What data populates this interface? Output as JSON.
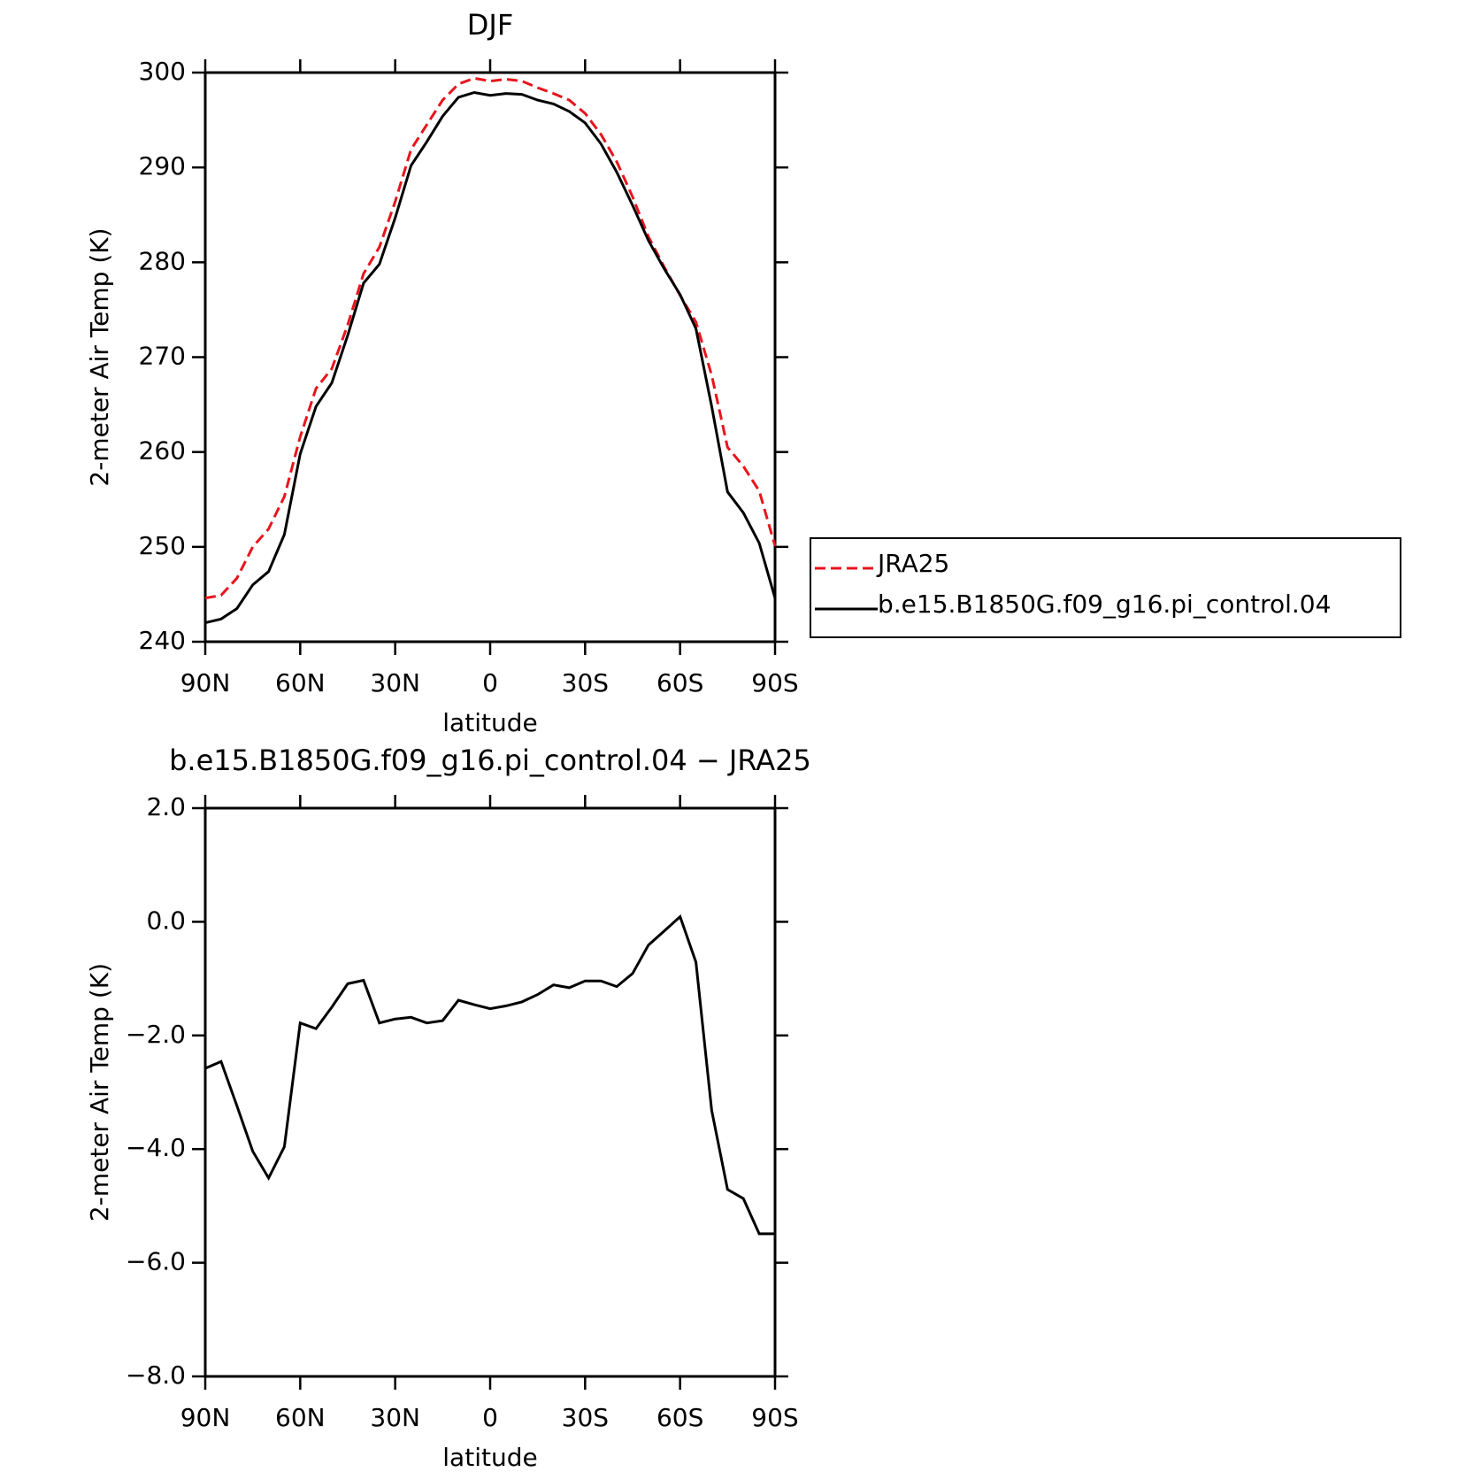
{
  "chart_data": [
    {
      "type": "line",
      "title": "DJF",
      "xlabel": "latitude",
      "ylabel": "2-meter Air Temp (K)",
      "x": [
        90,
        85,
        80,
        75,
        70,
        65,
        60,
        55,
        50,
        45,
        40,
        35,
        30,
        25,
        20,
        15,
        10,
        5,
        0,
        -5,
        -10,
        -15,
        -20,
        -25,
        -30,
        -35,
        -40,
        -45,
        -50,
        -55,
        -60,
        -65,
        -70,
        -75,
        -80,
        -85,
        -90
      ],
      "series": [
        {
          "name": "JRA25",
          "color": "#e8141c",
          "dash": true,
          "values": [
            244.6,
            244.9,
            246.7,
            250.0,
            251.9,
            255.3,
            261.6,
            266.7,
            268.8,
            273.4,
            278.8,
            281.6,
            286.4,
            291.9,
            294.5,
            297.1,
            298.8,
            299.4,
            299.1,
            299.3,
            299.1,
            298.4,
            297.8,
            297.1,
            295.7,
            293.5,
            290.6,
            286.9,
            282.7,
            279.5,
            276.5,
            273.7,
            268.1,
            260.5,
            258.5,
            255.9,
            250.1
          ]
        },
        {
          "name": "b.e15.B1850G.f09_g16.pi_control.04",
          "color": "#000000",
          "dash": false,
          "values": [
            242.0,
            242.4,
            243.5,
            246.0,
            247.4,
            251.3,
            259.8,
            264.8,
            267.3,
            272.3,
            277.8,
            279.8,
            284.7,
            290.2,
            292.7,
            295.4,
            297.4,
            297.9,
            297.6,
            297.8,
            297.7,
            297.1,
            296.7,
            295.9,
            294.7,
            292.5,
            289.5,
            286.0,
            282.3,
            279.3,
            276.6,
            273.0,
            264.8,
            255.8,
            253.6,
            250.4,
            244.6
          ]
        }
      ],
      "xlim": [
        90,
        -90
      ],
      "xticks": [
        {
          "value": 90,
          "label": "90N"
        },
        {
          "value": 60,
          "label": "60N"
        },
        {
          "value": 30,
          "label": "30N"
        },
        0,
        {
          "value": -30,
          "label": "30S"
        },
        {
          "value": -60,
          "label": "60S"
        },
        {
          "value": -90,
          "label": "90S"
        }
      ],
      "ylim": [
        240,
        300
      ],
      "yticks": [
        240,
        250,
        260,
        270,
        280,
        290,
        300
      ],
      "legend": "right"
    },
    {
      "type": "line",
      "title": "b.e15.B1850G.f09_g16.pi_control.04 − JRA25",
      "xlabel": "latitude",
      "ylabel": "2-meter Air Temp (K)",
      "x": [
        90,
        85,
        80,
        75,
        70,
        65,
        60,
        55,
        50,
        45,
        40,
        35,
        30,
        25,
        20,
        15,
        10,
        5,
        0,
        -5,
        -10,
        -15,
        -20,
        -25,
        -30,
        -35,
        -40,
        -45,
        -50,
        -55,
        -60,
        -65,
        -70,
        -75,
        -80,
        -85,
        -90
      ],
      "values": [
        -2.58,
        -2.46,
        -3.24,
        -4.04,
        -4.51,
        -3.96,
        -1.78,
        -1.88,
        -1.5,
        -1.09,
        -1.03,
        -1.78,
        -1.71,
        -1.68,
        -1.78,
        -1.74,
        -1.38,
        -1.46,
        -1.53,
        -1.48,
        -1.41,
        -1.28,
        -1.11,
        -1.16,
        -1.04,
        -1.04,
        -1.14,
        -0.91,
        -0.41,
        -0.16,
        0.09,
        -0.71,
        -3.32,
        -4.71,
        -4.87,
        -5.49,
        -5.49
      ],
      "color": "#000000",
      "xlim": [
        90,
        -90
      ],
      "xticks": [
        {
          "value": 90,
          "label": "90N"
        },
        {
          "value": 60,
          "label": "60N"
        },
        {
          "value": 30,
          "label": "30N"
        },
        0,
        {
          "value": -30,
          "label": "30S"
        },
        {
          "value": -60,
          "label": "60S"
        },
        {
          "value": -90,
          "label": "90S"
        }
      ],
      "ylim": [
        -8,
        2
      ],
      "yticks": [
        {
          "value": -8,
          "label": "−8.0"
        },
        {
          "value": -6,
          "label": "−6.0"
        },
        {
          "value": -4,
          "label": "−4.0"
        },
        {
          "value": -2,
          "label": "−2.0"
        },
        {
          "value": 0,
          "label": "0.0"
        },
        {
          "value": 2,
          "label": "2.0"
        }
      ]
    }
  ]
}
